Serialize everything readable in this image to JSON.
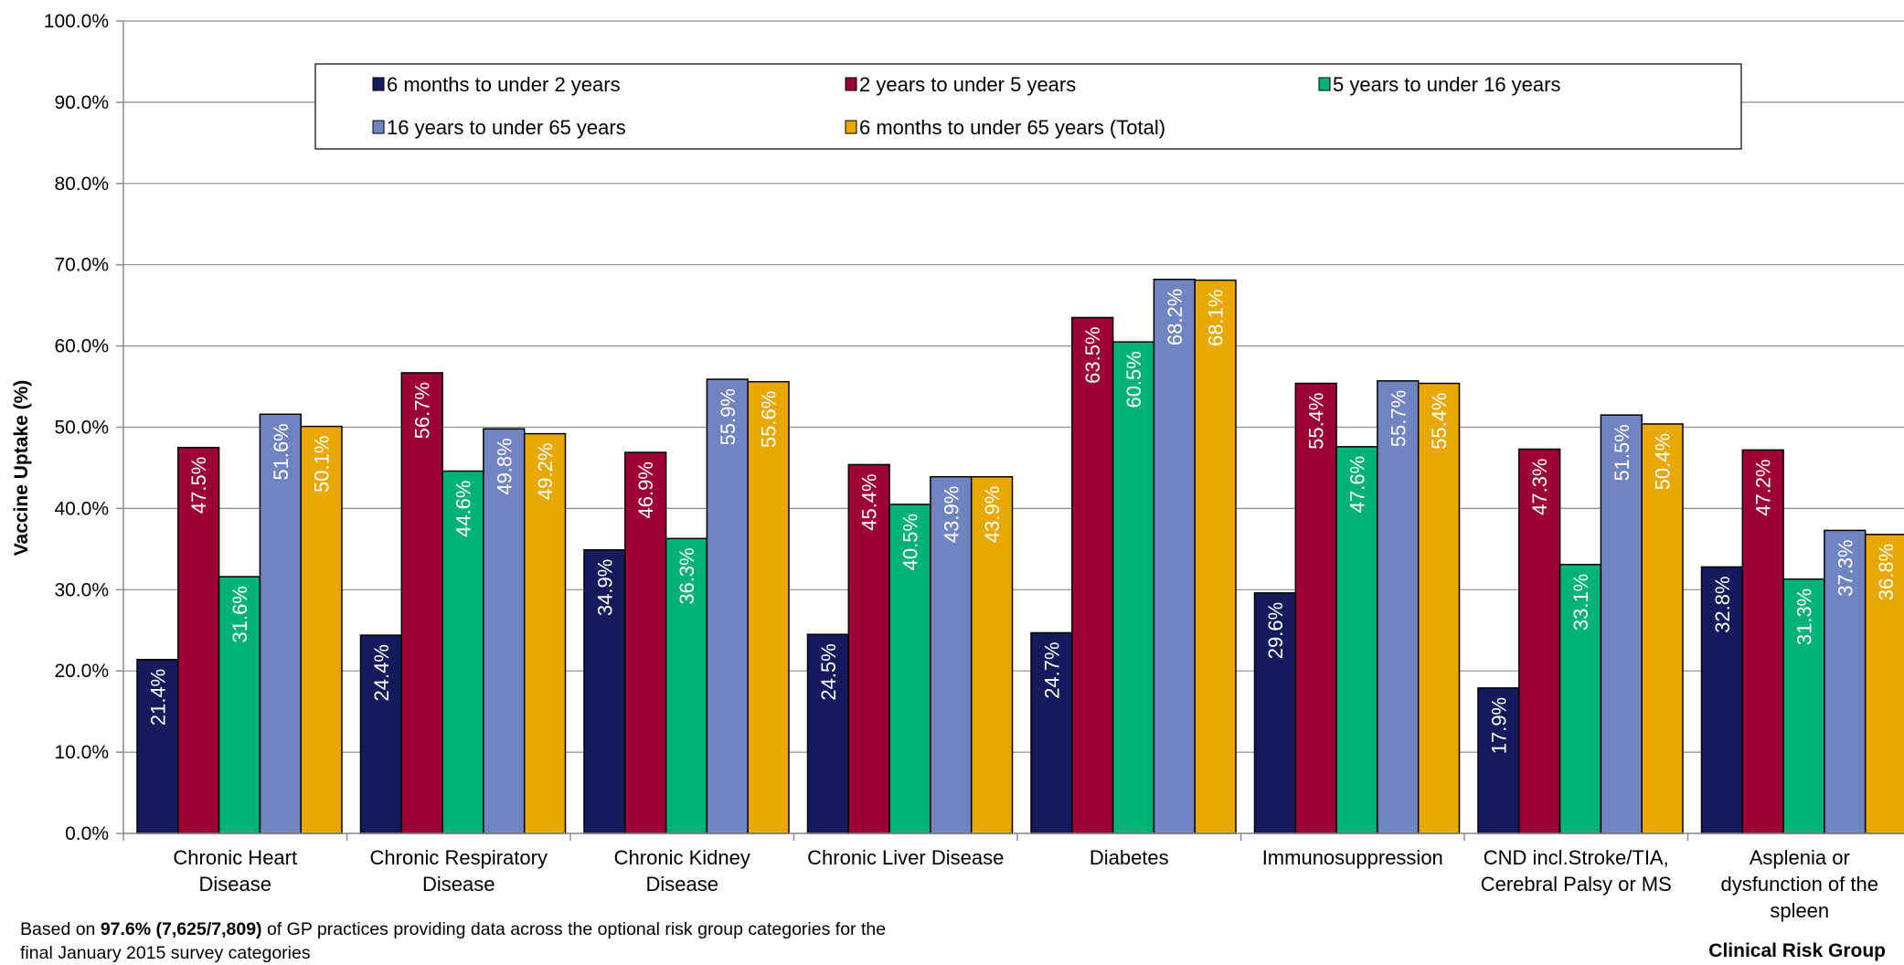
{
  "chart_data": {
    "type": "bar",
    "title": "",
    "xlabel": "Clinical Risk Group",
    "ylabel": "Vaccine Uptake (%)",
    "ylim": [
      0,
      100
    ],
    "y_ticks": [
      "0.0%",
      "10.0%",
      "20.0%",
      "30.0%",
      "40.0%",
      "50.0%",
      "60.0%",
      "70.0%",
      "80.0%",
      "90.0%",
      "100.0%"
    ],
    "grid": true,
    "legend_position": "top-inside",
    "categories": [
      [
        "Chronic Heart",
        "Disease"
      ],
      [
        "Chronic Respiratory",
        "Disease"
      ],
      [
        "Chronic Kidney",
        "Disease"
      ],
      [
        "Chronic Liver Disease"
      ],
      [
        "Diabetes"
      ],
      [
        "Immunosuppression"
      ],
      [
        "CND incl.Stroke/TIA,",
        "Cerebral Palsy or MS"
      ],
      [
        "Asplenia or",
        "dysfunction of the",
        "spleen"
      ]
    ],
    "series": [
      {
        "name": "6 months to under 2 years",
        "color": "#141a5c",
        "values": [
          21.4,
          24.4,
          34.9,
          24.5,
          24.7,
          29.6,
          17.9,
          32.8
        ],
        "labels": [
          "21.4%",
          "24.4%",
          "34.9%",
          "24.5%",
          "24.7%",
          "29.6%",
          "17.9%",
          "32.8%"
        ]
      },
      {
        "name": "2 years to under 5 years",
        "color": "#9c0036",
        "values": [
          47.5,
          56.7,
          46.9,
          45.4,
          63.5,
          55.4,
          47.3,
          47.2
        ],
        "labels": [
          "47.5%",
          "56.7%",
          "46.9%",
          "45.4%",
          "63.5%",
          "55.4%",
          "47.3%",
          "47.2%"
        ]
      },
      {
        "name": "5 years to under 16 years",
        "color": "#00b274",
        "values": [
          31.6,
          44.6,
          36.3,
          40.5,
          60.5,
          47.6,
          33.1,
          31.3
        ],
        "labels": [
          "31.6%",
          "44.6%",
          "36.3%",
          "40.5%",
          "60.5%",
          "47.6%",
          "33.1%",
          "31.3%"
        ]
      },
      {
        "name": "16 years to under 65 years",
        "color": "#7184c2",
        "values": [
          51.6,
          49.8,
          55.9,
          43.9,
          68.2,
          55.7,
          51.5,
          37.3
        ],
        "labels": [
          "51.6%",
          "49.8%",
          "55.9%",
          "43.9%",
          "68.2%",
          "55.7%",
          "51.5%",
          "37.3%"
        ]
      },
      {
        "name": "6 months to under 65 years (Total)",
        "color": "#e8a800",
        "values": [
          50.1,
          49.2,
          55.6,
          43.9,
          68.1,
          55.4,
          50.4,
          36.8
        ],
        "labels": [
          "50.1%",
          "49.2%",
          "55.6%",
          "43.9%",
          "68.1%",
          "55.4%",
          "50.4%",
          "36.8%"
        ]
      }
    ]
  },
  "footnote": {
    "prefix": "Based on ",
    "bold": "97.6% (7,625/7,809)",
    "suffix": " of GP practices providing data across the optional risk group categories for the final January 2015 survey categories"
  }
}
